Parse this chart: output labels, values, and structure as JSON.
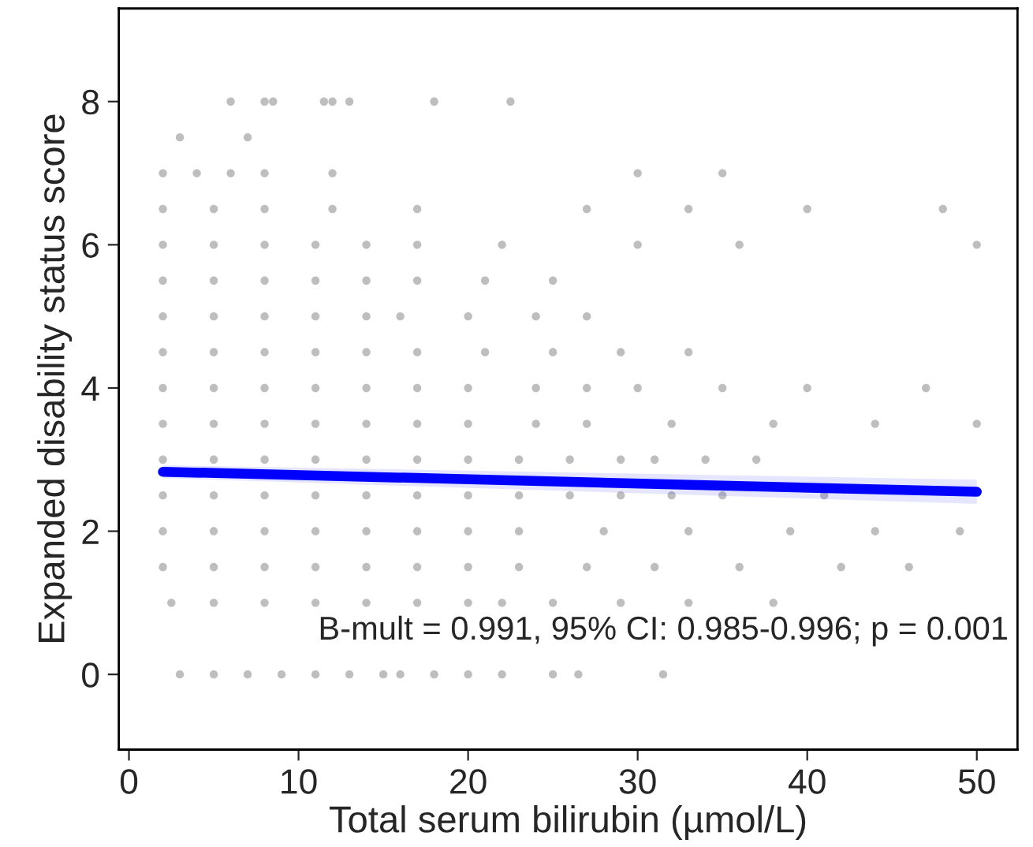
{
  "chart_data": {
    "type": "scatter",
    "xlabel": "Total serum bilirubin (µmol/L)",
    "ylabel": "Expanded disability status score",
    "xlim": [
      -0.6,
      52.4
    ],
    "ylim": [
      -1.05,
      9.3
    ],
    "xticks": [
      0,
      10,
      20,
      30,
      40,
      50
    ],
    "yticks": [
      0,
      2,
      4,
      6,
      8
    ],
    "grid": false,
    "annotations": [
      "B-mult = 0.991, 95% CI: 0.985-0.996; p = 0.001"
    ],
    "series": [
      {
        "color": "#bebebe",
        "marker": "circle",
        "x": [
          3,
          5,
          7,
          9,
          11,
          13,
          15,
          16,
          18,
          20,
          22,
          25,
          26.5,
          31.5
        ],
        "values": [
          0,
          0,
          0,
          0,
          0,
          0,
          0,
          0,
          0,
          0,
          0,
          0,
          0,
          0
        ]
      },
      {
        "color": "#bebebe",
        "marker": "circle",
        "x": [
          2.5,
          5,
          8,
          11,
          14,
          17,
          20,
          22,
          25,
          29,
          33,
          38
        ],
        "values": [
          1,
          1,
          1,
          1,
          1,
          1,
          1,
          1,
          1,
          1,
          1,
          1
        ]
      },
      {
        "color": "#bebebe",
        "marker": "circle",
        "x": [
          2,
          5,
          8,
          11,
          14,
          17,
          20,
          23,
          27,
          31,
          36,
          42,
          46
        ],
        "values": [
          1.5,
          1.5,
          1.5,
          1.5,
          1.5,
          1.5,
          1.5,
          1.5,
          1.5,
          1.5,
          1.5,
          1.5,
          1.5
        ]
      },
      {
        "color": "#bebebe",
        "marker": "circle",
        "x": [
          2,
          5,
          8,
          11,
          14,
          17,
          20,
          23,
          28,
          33,
          39,
          44,
          49
        ],
        "values": [
          2,
          2,
          2,
          2,
          2,
          2,
          2,
          2,
          2,
          2,
          2,
          2,
          2
        ]
      },
      {
        "color": "#bebebe",
        "marker": "circle",
        "x": [
          2,
          5,
          8,
          11,
          14,
          17,
          20,
          23,
          26,
          29,
          32,
          35,
          41
        ],
        "values": [
          2.5,
          2.5,
          2.5,
          2.5,
          2.5,
          2.5,
          2.5,
          2.5,
          2.5,
          2.5,
          2.5,
          2.5,
          2.5
        ]
      },
      {
        "color": "#bebebe",
        "marker": "circle",
        "x": [
          2,
          5,
          8,
          11,
          14,
          17,
          20,
          23,
          26,
          29,
          31,
          34,
          37
        ],
        "values": [
          3,
          3,
          3,
          3,
          3,
          3,
          3,
          3,
          3,
          3,
          3,
          3,
          3
        ]
      },
      {
        "color": "#bebebe",
        "marker": "circle",
        "x": [
          2,
          5,
          8,
          11,
          14,
          17,
          20,
          24,
          27,
          32,
          38,
          44,
          50
        ],
        "values": [
          3.5,
          3.5,
          3.5,
          3.5,
          3.5,
          3.5,
          3.5,
          3.5,
          3.5,
          3.5,
          3.5,
          3.5,
          3.5
        ]
      },
      {
        "color": "#bebebe",
        "marker": "circle",
        "x": [
          2,
          5,
          8,
          11,
          14,
          17,
          20,
          24,
          27,
          30,
          35,
          40,
          47
        ],
        "values": [
          4,
          4,
          4,
          4,
          4,
          4,
          4,
          4,
          4,
          4,
          4,
          4,
          4
        ]
      },
      {
        "color": "#bebebe",
        "marker": "circle",
        "x": [
          2,
          5,
          8,
          11,
          14,
          17,
          21,
          25,
          29,
          33
        ],
        "values": [
          4.5,
          4.5,
          4.5,
          4.5,
          4.5,
          4.5,
          4.5,
          4.5,
          4.5,
          4.5
        ]
      },
      {
        "color": "#bebebe",
        "marker": "circle",
        "x": [
          2,
          5,
          8,
          11,
          14,
          16,
          20,
          24,
          27
        ],
        "values": [
          5,
          5,
          5,
          5,
          5,
          5,
          5,
          5,
          5
        ]
      },
      {
        "color": "#bebebe",
        "marker": "circle",
        "x": [
          2,
          5,
          8,
          11,
          14,
          17,
          21,
          25
        ],
        "values": [
          5.5,
          5.5,
          5.5,
          5.5,
          5.5,
          5.5,
          5.5,
          5.5
        ]
      },
      {
        "color": "#bebebe",
        "marker": "circle",
        "x": [
          2,
          5,
          8,
          11,
          14,
          17,
          22,
          30,
          36,
          50
        ],
        "values": [
          6,
          6,
          6,
          6,
          6,
          6,
          6,
          6,
          6,
          6
        ]
      },
      {
        "color": "#bebebe",
        "marker": "circle",
        "x": [
          2,
          5,
          8,
          12,
          17,
          27,
          33,
          40,
          48
        ],
        "values": [
          6.5,
          6.5,
          6.5,
          6.5,
          6.5,
          6.5,
          6.5,
          6.5,
          6.5
        ]
      },
      {
        "color": "#bebebe",
        "marker": "circle",
        "x": [
          2,
          4,
          6,
          8,
          12,
          30,
          35
        ],
        "values": [
          7,
          7,
          7,
          7,
          7,
          7,
          7
        ]
      },
      {
        "color": "#bebebe",
        "marker": "circle",
        "x": [
          3,
          7
        ],
        "values": [
          7.5,
          7.5
        ]
      },
      {
        "color": "#bebebe",
        "marker": "circle",
        "x": [
          6,
          8,
          8.5,
          11.5,
          12,
          13,
          18,
          22.5
        ],
        "values": [
          8,
          8,
          8,
          8,
          8,
          8,
          8,
          8
        ]
      },
      {
        "type": "line",
        "color": "#0000ff",
        "x": [
          2,
          50
        ],
        "values": [
          2.83,
          2.55
        ],
        "lower": [
          2.74,
          2.38
        ],
        "upper": [
          2.92,
          2.72
        ]
      }
    ]
  }
}
